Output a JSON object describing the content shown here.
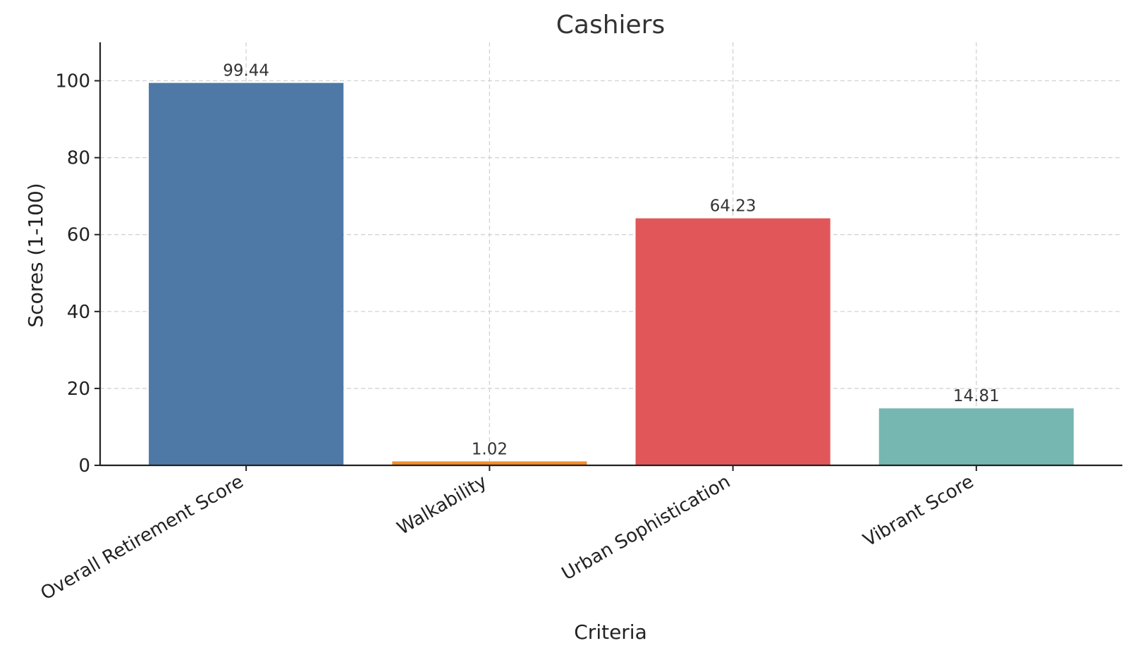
{
  "chart_data": {
    "type": "bar",
    "title": "Cashiers",
    "xlabel": "Criteria",
    "ylabel": "Scores (1-100)",
    "categories": [
      "Overall Retirement Score",
      "Walkability",
      "Urban Sophistication",
      "Vibrant Score"
    ],
    "values": [
      99.44,
      1.02,
      64.23,
      14.81
    ],
    "value_labels": [
      "99.44",
      "1.02",
      "64.23",
      "14.81"
    ],
    "colors": [
      "#4e79a7",
      "#f28e2b",
      "#e15759",
      "#76b7b2"
    ],
    "ylim": [
      0,
      110
    ],
    "yticks": [
      0,
      20,
      40,
      60,
      80,
      100
    ],
    "grid": true,
    "legend": "none"
  }
}
